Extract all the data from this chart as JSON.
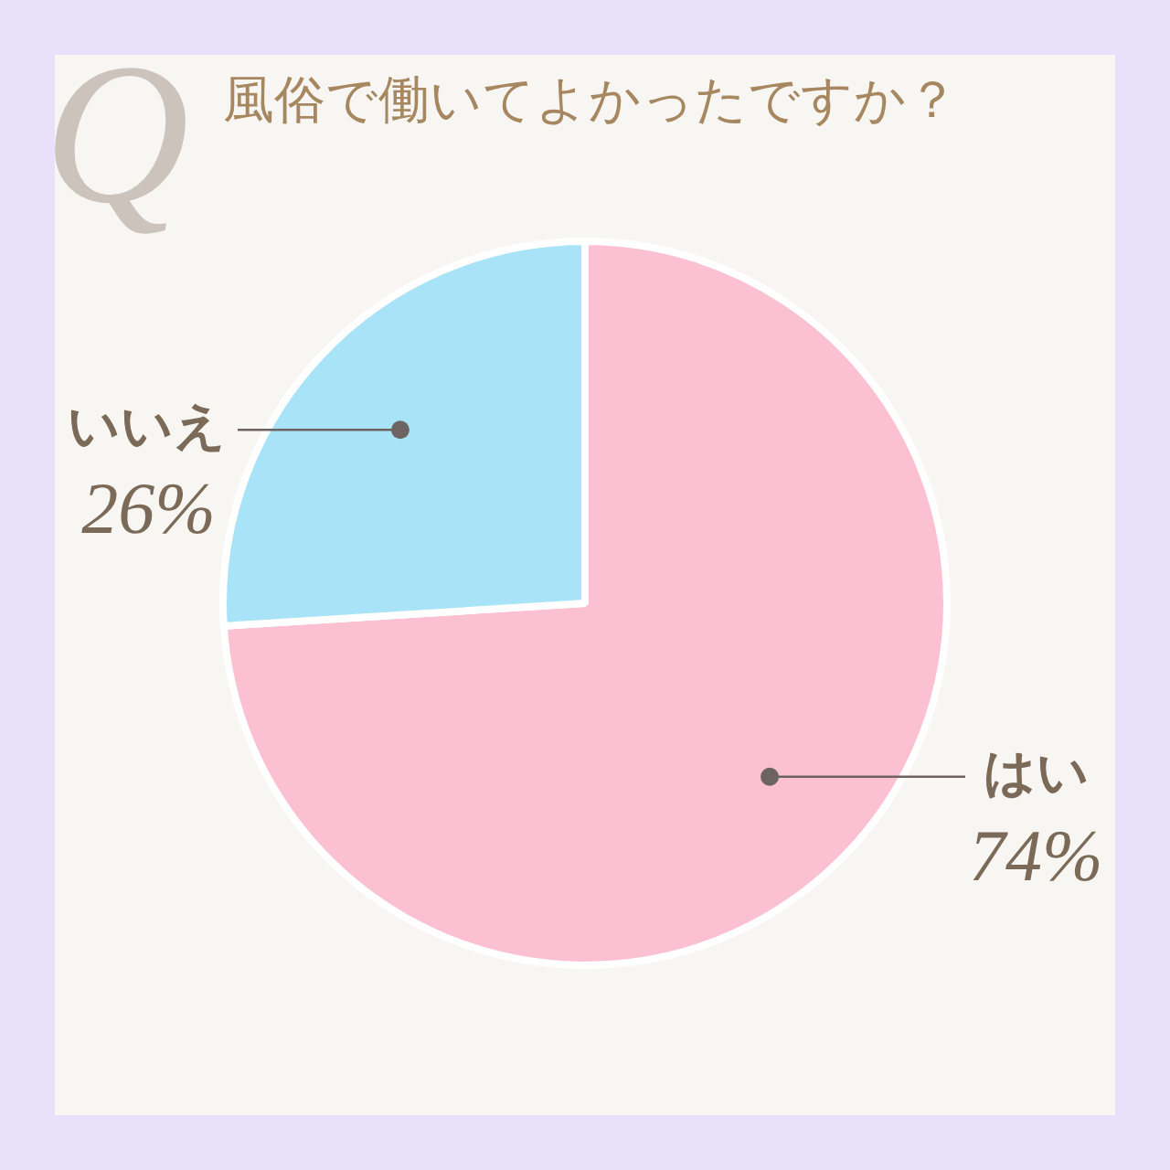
{
  "chart_data": {
    "type": "pie",
    "title": "風俗で働いてよかったですか？",
    "categories": [
      "はい",
      "いいえ"
    ],
    "values": [
      74,
      26
    ],
    "colors": [
      "#fbc1d3",
      "#a9e3f7"
    ],
    "value_labels": [
      "74%",
      "26%"
    ],
    "annotations": [
      "Q"
    ],
    "legend": false
  }
}
